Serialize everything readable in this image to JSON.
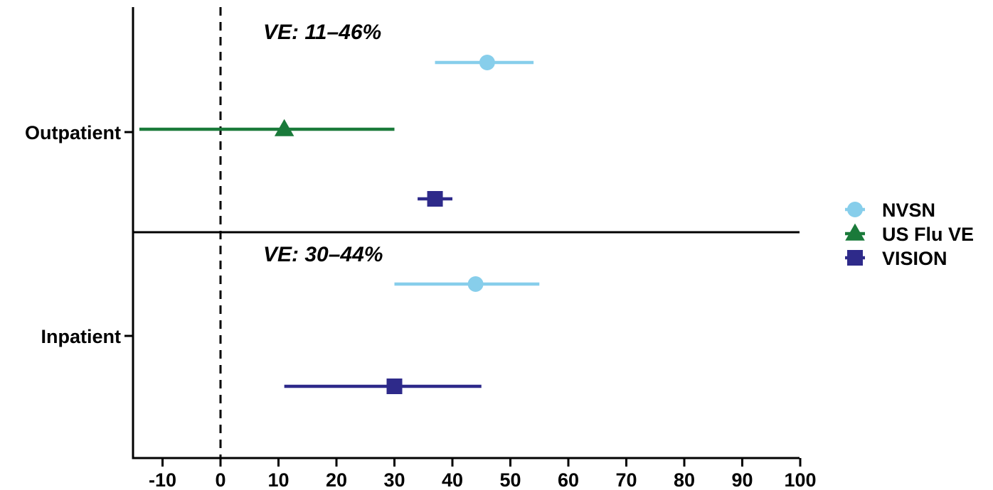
{
  "chart_data": {
    "type": "scatter",
    "subtype": "forest-plot",
    "xlim": [
      -15,
      100
    ],
    "x_ticks": [
      -10,
      0,
      10,
      20,
      30,
      40,
      50,
      60,
      70,
      80,
      90,
      100
    ],
    "reference_line_x": 0,
    "legend_position": "right",
    "colors": {
      "NVSN": "#87ceeb",
      "US Flu VE": "#1a7a3a",
      "VISION": "#2e2a8a"
    },
    "panels": [
      {
        "label": "Outpatient",
        "annotation": "VE: 11–46%",
        "estimates": [
          {
            "series": "NVSN",
            "value": 46,
            "lower": 37,
            "upper": 54
          },
          {
            "series": "US Flu VE",
            "value": 11,
            "lower": -14,
            "upper": 30
          },
          {
            "series": "VISION",
            "value": 37,
            "lower": 34,
            "upper": 40
          }
        ]
      },
      {
        "label": "Inpatient",
        "annotation": "VE: 30–44%",
        "estimates": [
          {
            "series": "NVSN",
            "value": 44,
            "lower": 30,
            "upper": 55
          },
          {
            "series": "VISION",
            "value": 30,
            "lower": 11,
            "upper": 45
          }
        ]
      }
    ],
    "series": [
      {
        "name": "NVSN",
        "marker": "circle"
      },
      {
        "name": "US Flu VE",
        "marker": "triangle"
      },
      {
        "name": "VISION",
        "marker": "square"
      }
    ]
  }
}
